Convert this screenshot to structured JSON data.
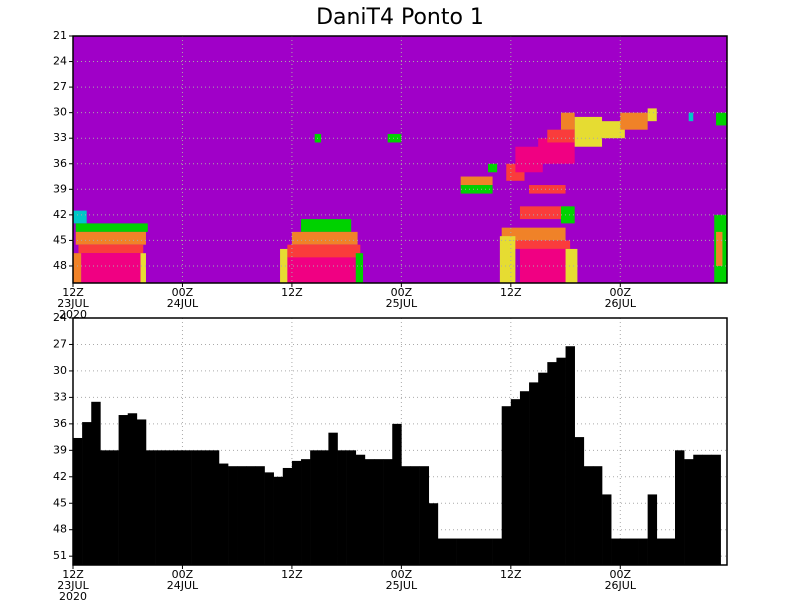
{
  "chart_data": [
    {
      "type": "heatmap",
      "title": "DaniT4 Ponto 1",
      "xlim": [
        0,
        71.7
      ],
      "ylim": [
        50,
        21
      ],
      "xticks": [
        {
          "value": 0,
          "label": "12Z\n23JUL\n2020"
        },
        {
          "value": 12,
          "label": "00Z\n24JUL"
        },
        {
          "value": 24,
          "label": "12Z"
        },
        {
          "value": 36,
          "label": "00Z\n25JUL"
        },
        {
          "value": 48,
          "label": "12Z"
        },
        {
          "value": 60,
          "label": "00Z\n26JUL"
        }
      ],
      "yticks": [
        21,
        24,
        27,
        30,
        33,
        36,
        39,
        42,
        45,
        48
      ],
      "grid": true,
      "background": "#a000c8",
      "colors": [
        "#a000c8",
        "#1e50ff",
        "#00c8c8",
        "#00d200",
        "#e6dc32",
        "#f08228",
        "#fa3c3c",
        "#f00082"
      ],
      "cells": [
        [
          0,
          1.5,
          41.5,
          43,
          2
        ],
        [
          0.3,
          8.2,
          43,
          44,
          3
        ],
        [
          0.3,
          8,
          44,
          45.5,
          5
        ],
        [
          0.6,
          7.7,
          45.5,
          46.5,
          6
        ],
        [
          0.9,
          7.4,
          46.5,
          50,
          7
        ],
        [
          0,
          0.9,
          46.5,
          50,
          5
        ],
        [
          7.4,
          8,
          46.5,
          50,
          4
        ],
        [
          25,
          30.5,
          42.5,
          44,
          3
        ],
        [
          24,
          31.2,
          44,
          45.5,
          5
        ],
        [
          23.5,
          31.5,
          45.5,
          47,
          6
        ],
        [
          23.5,
          31,
          47,
          50,
          7
        ],
        [
          22.7,
          23.5,
          46,
          50,
          4
        ],
        [
          31,
          31.8,
          46.5,
          50,
          3
        ],
        [
          49,
          54.5,
          41,
          42.5,
          6
        ],
        [
          53.5,
          55,
          41,
          43,
          3
        ],
        [
          47,
          54,
          43.5,
          45,
          5
        ],
        [
          48.5,
          54.5,
          45,
          46,
          6
        ],
        [
          49,
          54,
          46,
          50,
          7
        ],
        [
          46.8,
          48.5,
          44.5,
          50,
          4
        ],
        [
          54,
          55.3,
          46,
          50,
          4
        ],
        [
          70.3,
          71.7,
          42,
          50,
          3
        ],
        [
          70.5,
          71.2,
          44,
          48,
          5
        ],
        [
          26.5,
          27.2,
          32.5,
          33.5,
          3
        ],
        [
          34.5,
          36,
          32.5,
          33.5,
          3
        ],
        [
          42.5,
          46,
          37.5,
          38.5,
          5
        ],
        [
          42.5,
          46,
          38.5,
          39.5,
          3
        ],
        [
          45.5,
          46.5,
          36,
          37,
          3
        ],
        [
          50,
          54,
          38.5,
          39.5,
          6
        ],
        [
          47.5,
          49.5,
          36,
          38,
          6
        ],
        [
          48.5,
          51.5,
          34,
          37,
          7
        ],
        [
          51,
          55,
          33,
          36,
          7
        ],
        [
          52,
          55,
          32,
          33.5,
          6
        ],
        [
          53.5,
          55,
          30,
          32,
          5
        ],
        [
          55,
          58,
          30.5,
          34,
          4
        ],
        [
          56,
          60.5,
          31,
          33,
          4
        ],
        [
          60,
          63,
          30,
          32,
          5
        ],
        [
          63,
          64,
          29.5,
          31,
          4
        ],
        [
          67.5,
          68,
          30,
          31,
          2
        ],
        [
          70.5,
          71.7,
          30,
          31.5,
          3
        ]
      ]
    },
    {
      "type": "bar",
      "xlim": [
        0,
        71.7
      ],
      "ylim": [
        52,
        24
      ],
      "xticks": [
        {
          "value": 0,
          "label": "12Z\n23JUL\n2020"
        },
        {
          "value": 12,
          "label": "00Z\n24JUL"
        },
        {
          "value": 24,
          "label": "12Z"
        },
        {
          "value": 36,
          "label": "00Z\n25JUL"
        },
        {
          "value": 48,
          "label": "12Z"
        },
        {
          "value": 60,
          "label": "00Z\n26JUL"
        }
      ],
      "yticks": [
        24,
        27,
        30,
        33,
        36,
        39,
        42,
        45,
        48,
        51
      ],
      "grid": true,
      "color": "#000000",
      "x": [
        0,
        1,
        2,
        3,
        4,
        5,
        6,
        7,
        8,
        9,
        10,
        11,
        12,
        13,
        14,
        15,
        16,
        17,
        18,
        19,
        20,
        21,
        22,
        23,
        24,
        25,
        26,
        27,
        28,
        29,
        30,
        31,
        32,
        33,
        34,
        35,
        36,
        37,
        38,
        39,
        40,
        41,
        42,
        43,
        44,
        45,
        46,
        47,
        48,
        49,
        50,
        51,
        52,
        53,
        54,
        55,
        56,
        57,
        58,
        59,
        60,
        61,
        62,
        63,
        64,
        65,
        66,
        67,
        68,
        69,
        70
      ],
      "values": [
        37.6,
        35.8,
        33.5,
        39,
        39,
        35,
        34.8,
        35.5,
        39,
        39,
        39,
        39,
        39,
        39,
        39,
        39,
        40.5,
        40.8,
        40.8,
        40.8,
        40.8,
        41.5,
        42,
        41,
        40.2,
        40,
        39,
        39,
        37,
        39,
        39,
        39.5,
        40,
        40,
        40,
        36,
        40.8,
        40.8,
        40.8,
        45,
        49,
        49,
        49,
        49,
        49,
        49,
        49,
        34,
        33.2,
        32.3,
        31.3,
        30.2,
        29,
        28.5,
        27.2,
        37.5,
        40.8,
        40.8,
        44,
        49,
        49,
        49,
        49,
        44,
        49,
        49,
        39,
        40,
        39.5,
        39.5,
        39.5
      ]
    }
  ]
}
